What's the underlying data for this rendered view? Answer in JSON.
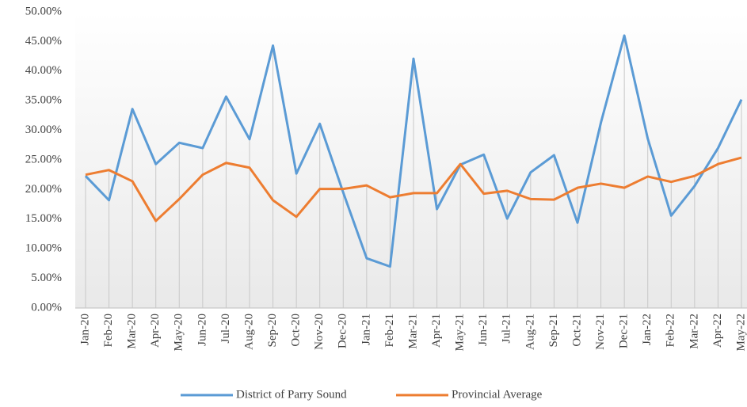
{
  "chart_data": {
    "type": "line",
    "categories": [
      "Jan-20",
      "Feb-20",
      "Mar-20",
      "Apr-20",
      "May-20",
      "Jun-20",
      "Jul-20",
      "Aug-20",
      "Sep-20",
      "Oct-20",
      "Nov-20",
      "Dec-20",
      "Jan-21",
      "Feb-21",
      "Mar-21",
      "Apr-21",
      "May-21",
      "Jun-21",
      "Jul-21",
      "Aug-21",
      "Sep-21",
      "Oct-21",
      "Nov-21",
      "Dec-21",
      "Jan-22",
      "Feb-22",
      "Mar-22",
      "Apr-22",
      "May-22"
    ],
    "series": [
      {
        "name": "District of Parry Sound",
        "color": "#5b9bd5",
        "values": [
          22.3,
          18.2,
          33.6,
          24.3,
          27.9,
          27.0,
          35.7,
          28.5,
          44.3,
          22.7,
          31.1,
          19.5,
          8.4,
          7.0,
          42.1,
          16.7,
          24.2,
          25.9,
          15.1,
          22.9,
          25.8,
          14.4,
          31.3,
          46.0,
          28.6,
          15.6,
          20.6,
          27.0,
          35.2
        ]
      },
      {
        "name": "Provincial Average",
        "color": "#ed7d31",
        "values": [
          22.5,
          23.3,
          21.4,
          14.7,
          18.4,
          22.5,
          24.5,
          23.7,
          18.2,
          15.4,
          20.1,
          20.1,
          20.7,
          18.7,
          19.4,
          19.4,
          24.3,
          19.3,
          19.8,
          18.4,
          18.3,
          20.3,
          21.0,
          20.3,
          22.2,
          21.3,
          22.3,
          24.3,
          25.4
        ]
      }
    ],
    "ylim": [
      0,
      50
    ],
    "yticks": [
      {
        "value": 0,
        "label": "0.00%"
      },
      {
        "value": 5,
        "label": "5.00%"
      },
      {
        "value": 10,
        "label": "10.00%"
      },
      {
        "value": 15,
        "label": "15.00%"
      },
      {
        "value": 20,
        "label": "20.00%"
      },
      {
        "value": 25,
        "label": "25.00%"
      },
      {
        "value": 30,
        "label": "30.00%"
      },
      {
        "value": 35,
        "label": "35.00%"
      },
      {
        "value": 40,
        "label": "40.00%"
      },
      {
        "value": 45,
        "label": "45.00%"
      },
      {
        "value": 50,
        "label": "50.00%"
      }
    ],
    "legend": "bottom"
  }
}
